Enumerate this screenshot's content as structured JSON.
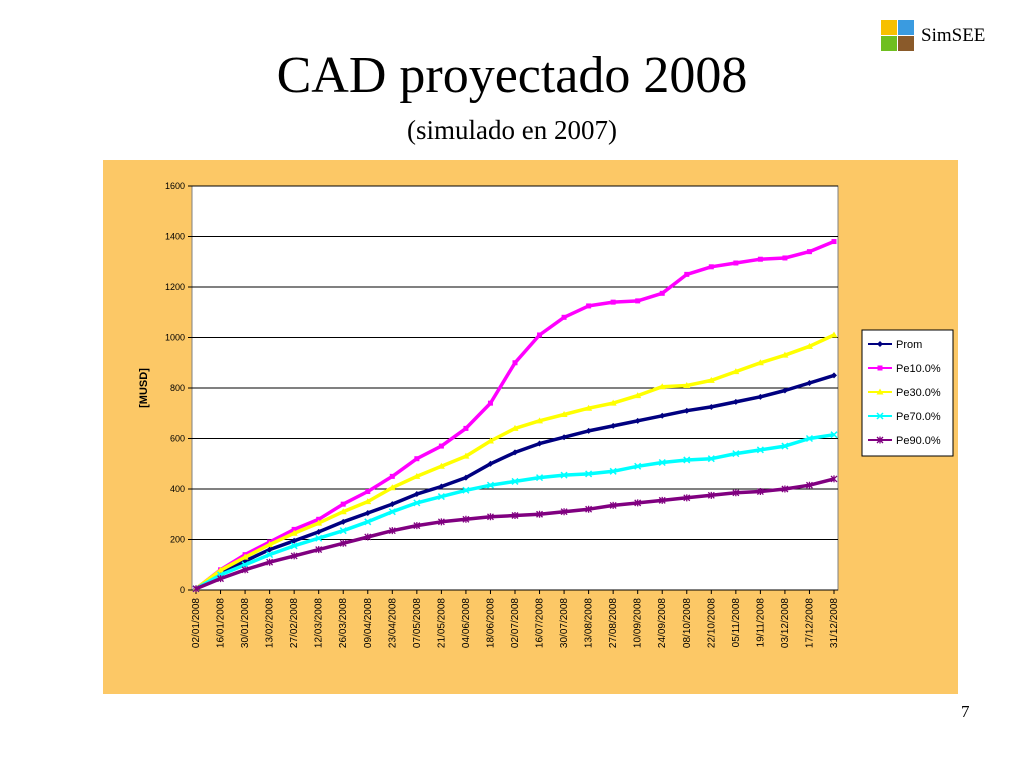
{
  "logo": {
    "text": "SimSEE",
    "colors": [
      "#f7c000",
      "#3a9be0",
      "#6fbf20",
      "#8a5a2a"
    ]
  },
  "slide": {
    "title": "CAD proyectado 2008",
    "subtitle": "(simulado en 2007)",
    "page_number": "7"
  },
  "colors": {
    "chart_background": "#fcc866",
    "plot_background": "#ffffff"
  },
  "chart_data": {
    "type": "line",
    "title": "",
    "xlabel": "",
    "ylabel": "[MUSD]",
    "ylim": [
      0,
      1600
    ],
    "yticks": [
      0,
      200,
      400,
      600,
      800,
      1000,
      1200,
      1400,
      1600
    ],
    "grid": "horizontal",
    "legend_position": "right",
    "x": [
      "02/01/2008",
      "16/01/2008",
      "30/01/2008",
      "13/02/2008",
      "27/02/2008",
      "12/03/2008",
      "26/03/2008",
      "09/04/2008",
      "23/04/2008",
      "07/05/2008",
      "21/05/2008",
      "04/06/2008",
      "18/06/2008",
      "02/07/2008",
      "16/07/2008",
      "30/07/2008",
      "13/08/2008",
      "27/08/2008",
      "10/09/2008",
      "24/09/2008",
      "08/10/2008",
      "22/10/2008",
      "05/11/2008",
      "19/11/2008",
      "03/12/2008",
      "17/12/2008",
      "31/12/2008"
    ],
    "series": [
      {
        "name": "Prom",
        "color": "#000080",
        "marker": "diamond",
        "values": [
          5,
          70,
          115,
          160,
          195,
          230,
          270,
          305,
          340,
          380,
          410,
          445,
          500,
          545,
          580,
          605,
          630,
          650,
          670,
          690,
          710,
          725,
          745,
          765,
          790,
          820,
          850
        ]
      },
      {
        "name": "Pe10.0%",
        "color": "#ff00ff",
        "marker": "square",
        "values": [
          5,
          80,
          140,
          190,
          240,
          280,
          340,
          390,
          450,
          520,
          570,
          640,
          740,
          900,
          1010,
          1080,
          1125,
          1140,
          1145,
          1175,
          1250,
          1280,
          1295,
          1310,
          1315,
          1340,
          1380
        ]
      },
      {
        "name": "Pe30.0%",
        "color": "#ffff00",
        "marker": "triangle",
        "values": [
          5,
          78,
          130,
          180,
          225,
          265,
          310,
          350,
          405,
          450,
          490,
          530,
          590,
          640,
          670,
          695,
          720,
          740,
          770,
          805,
          810,
          830,
          865,
          900,
          930,
          965,
          1010
        ]
      },
      {
        "name": "Pe70.0%",
        "color": "#00ffff",
        "marker": "x",
        "values": [
          5,
          60,
          100,
          140,
          175,
          205,
          235,
          270,
          310,
          345,
          370,
          395,
          415,
          430,
          445,
          455,
          460,
          470,
          490,
          505,
          515,
          520,
          540,
          555,
          570,
          600,
          615
        ]
      },
      {
        "name": "Pe90.0%",
        "color": "#800080",
        "marker": "star",
        "values": [
          5,
          45,
          80,
          110,
          135,
          160,
          185,
          210,
          235,
          255,
          270,
          280,
          290,
          295,
          300,
          310,
          320,
          335,
          345,
          355,
          365,
          375,
          385,
          390,
          400,
          415,
          440
        ]
      }
    ]
  }
}
